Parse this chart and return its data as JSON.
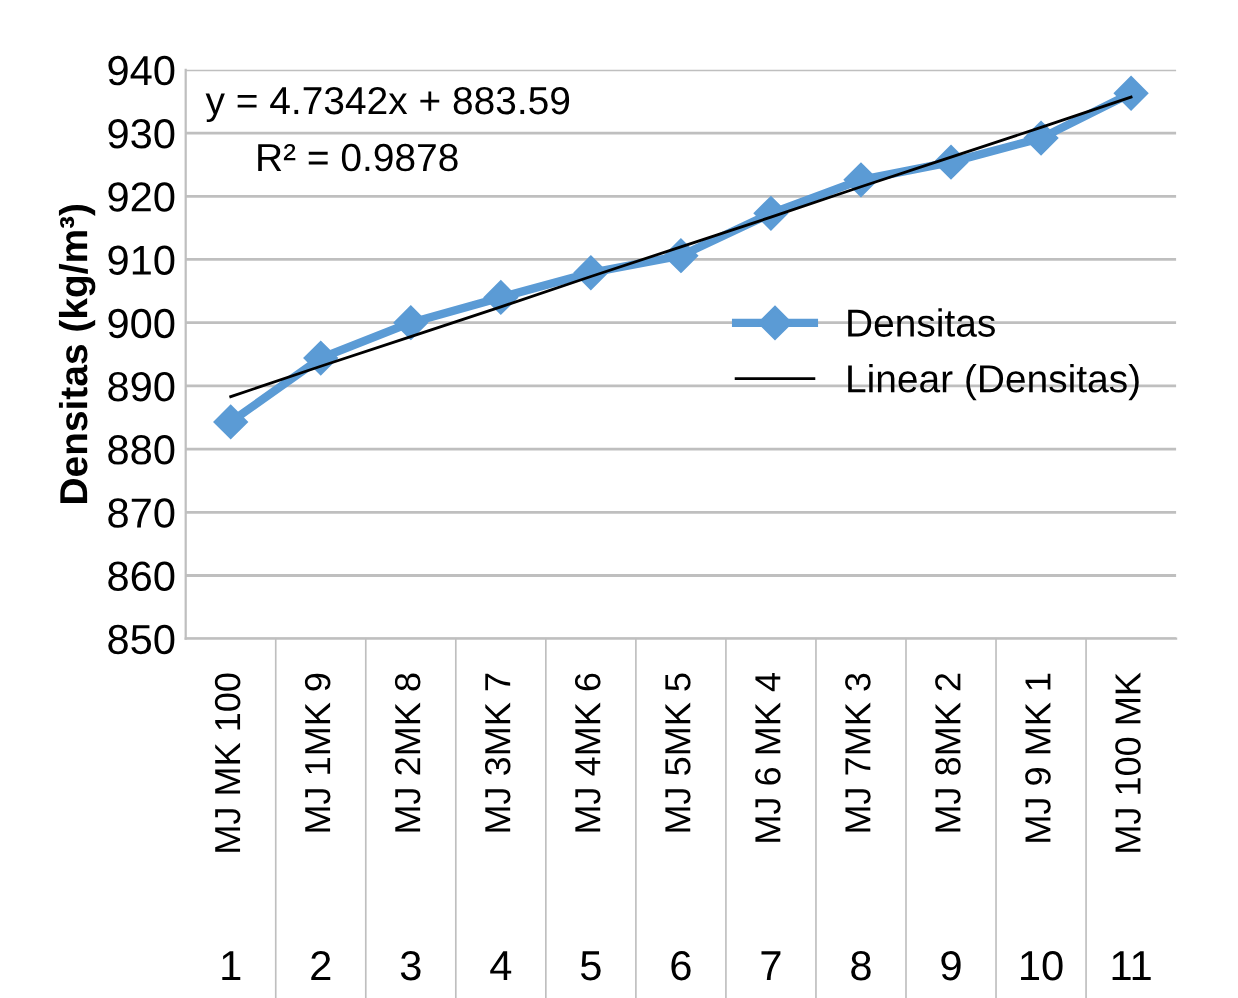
{
  "chart_data": {
    "type": "line",
    "ylabel": "Densitas (kg/m³)",
    "categories": [
      "MJ MK 100",
      "MJ 1MK 9",
      "MJ 2MK 8",
      "MJ 3MK 7",
      "MJ 4MK 6",
      "MJ 5MK 5",
      "MJ 6 MK 4",
      "MJ 7MK 3",
      "MJ 8MK 2",
      "MJ 9 MK 1",
      "MJ 100 MK"
    ],
    "series": [
      {
        "name": "Densitas",
        "color": "#5b9bd5",
        "marker": "diamond",
        "values": [
          884.3,
          894.4,
          900,
          904,
          907.9,
          910.6,
          917.3,
          922.6,
          925.4,
          929.2,
          936.3
        ]
      },
      {
        "name": "Linear (Densitas)",
        "color": "#000000",
        "marker": "none",
        "values": [
          888.3,
          893.1,
          897.8,
          902.5,
          907.3,
          912,
          916.7,
          921.5,
          926.2,
          930.9,
          935.7
        ]
      }
    ],
    "ylim": [
      850,
      940
    ],
    "yticks": [
      850,
      860,
      870,
      880,
      890,
      900,
      910,
      920,
      930,
      940
    ],
    "grid": "y",
    "legend": "right",
    "annotations": [
      "y = 4.7342x + 883.59",
      "R² = 0.9878",
      "1",
      "2",
      "3",
      "4",
      "5",
      "6",
      "7",
      "8",
      "9",
      "10",
      "11"
    ]
  }
}
